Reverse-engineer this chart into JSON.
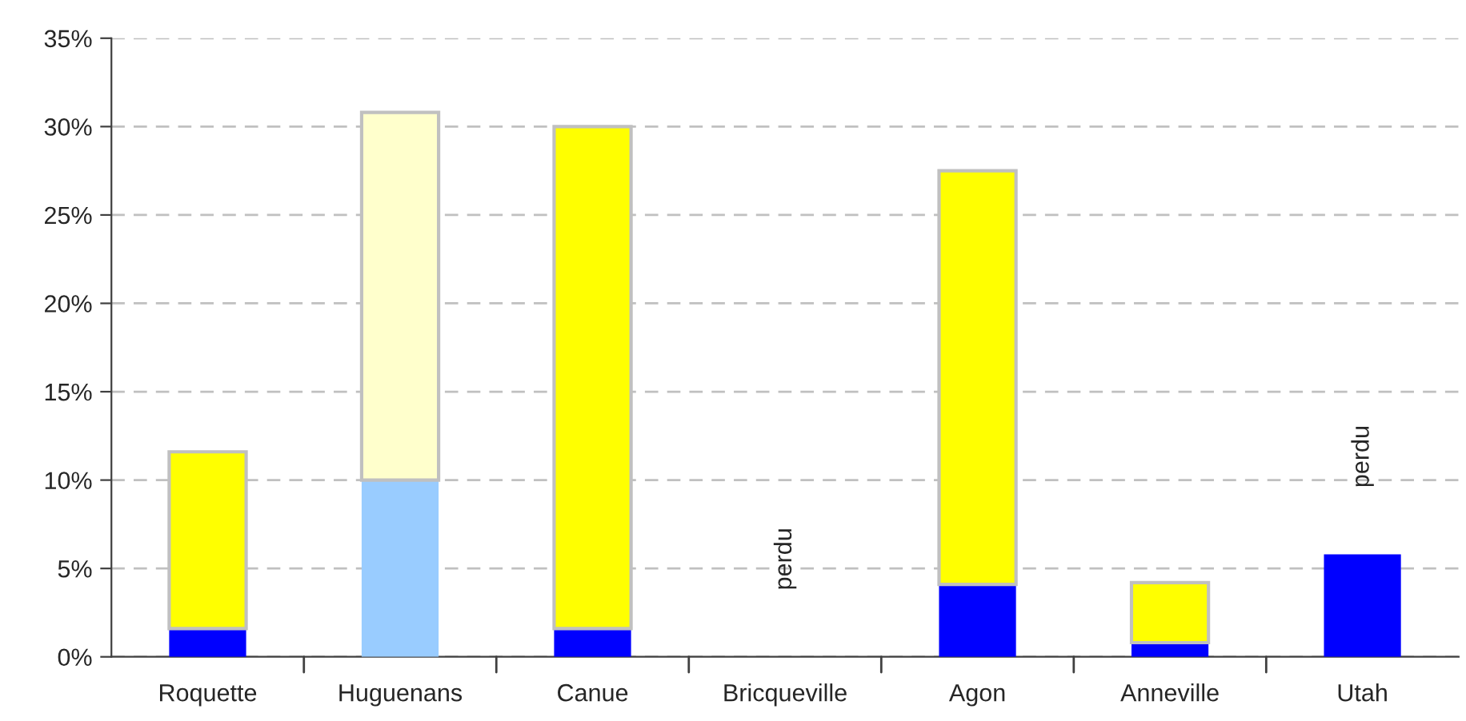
{
  "chart_data": {
    "type": "bar",
    "stacked": true,
    "categories": [
      "Roquette",
      "Huguenans",
      "Canue",
      "Bricqueville",
      "Agon",
      "Anneville",
      "Utah"
    ],
    "series": [
      {
        "colors": [
          "#0000ff",
          "#99ccff",
          "#0000ff",
          "#0000ff",
          "#0000ff",
          "#0000ff",
          "#0000ff"
        ],
        "values": [
          1.6,
          10.0,
          1.6,
          0,
          4.1,
          0.8,
          5.8
        ]
      },
      {
        "colors": [
          "#ffff00",
          "#ffffcc",
          "#ffff00",
          "#ffff00",
          "#ffff00",
          "#ffff00",
          "#ffff00"
        ],
        "values": [
          10.0,
          20.8,
          28.4,
          0,
          23.4,
          3.4,
          0
        ],
        "value_labels": [
          null,
          null,
          null,
          "perdu",
          null,
          null,
          "perdu"
        ]
      }
    ],
    "ylim": [
      0,
      35
    ],
    "yticks": [
      {
        "value": 0,
        "label": "0%"
      },
      {
        "value": 5,
        "label": "5%"
      },
      {
        "value": 10,
        "label": "10%"
      },
      {
        "value": 15,
        "label": "15%"
      },
      {
        "value": 20,
        "label": "20%"
      },
      {
        "value": 25,
        "label": "25%"
      },
      {
        "value": 30,
        "label": "30%"
      },
      {
        "value": 35,
        "label": "35%"
      }
    ],
    "grid": "y"
  }
}
